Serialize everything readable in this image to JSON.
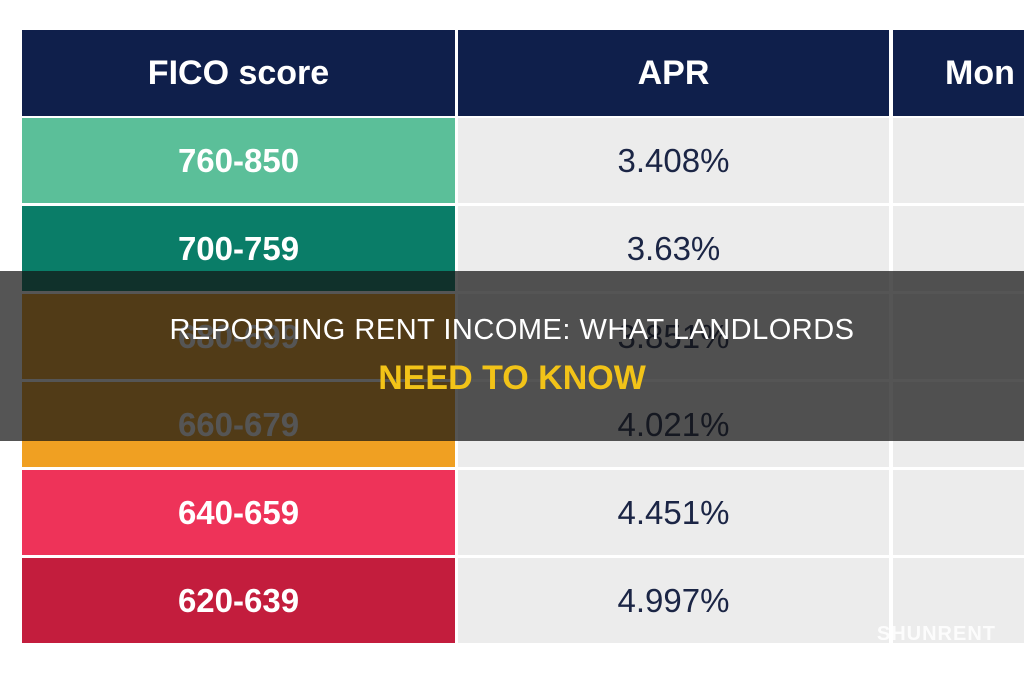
{
  "table": {
    "header": [
      "FICO score",
      "APR",
      "Mon"
    ],
    "rows": [
      [
        "760-850",
        "3.408%"
      ],
      [
        "700-759",
        "3.63%"
      ],
      [
        "680-699",
        "3.851%"
      ],
      [
        "660-679",
        "4.021%"
      ],
      [
        "640-659",
        "4.451%"
      ],
      [
        "620-639",
        "4.997%"
      ]
    ]
  },
  "title": {
    "line1": "REPORTING RENT INCOME: WHAT LANDLORDS",
    "line2": "NEED TO KNOW"
  },
  "watermark": "SHUNRENT"
}
